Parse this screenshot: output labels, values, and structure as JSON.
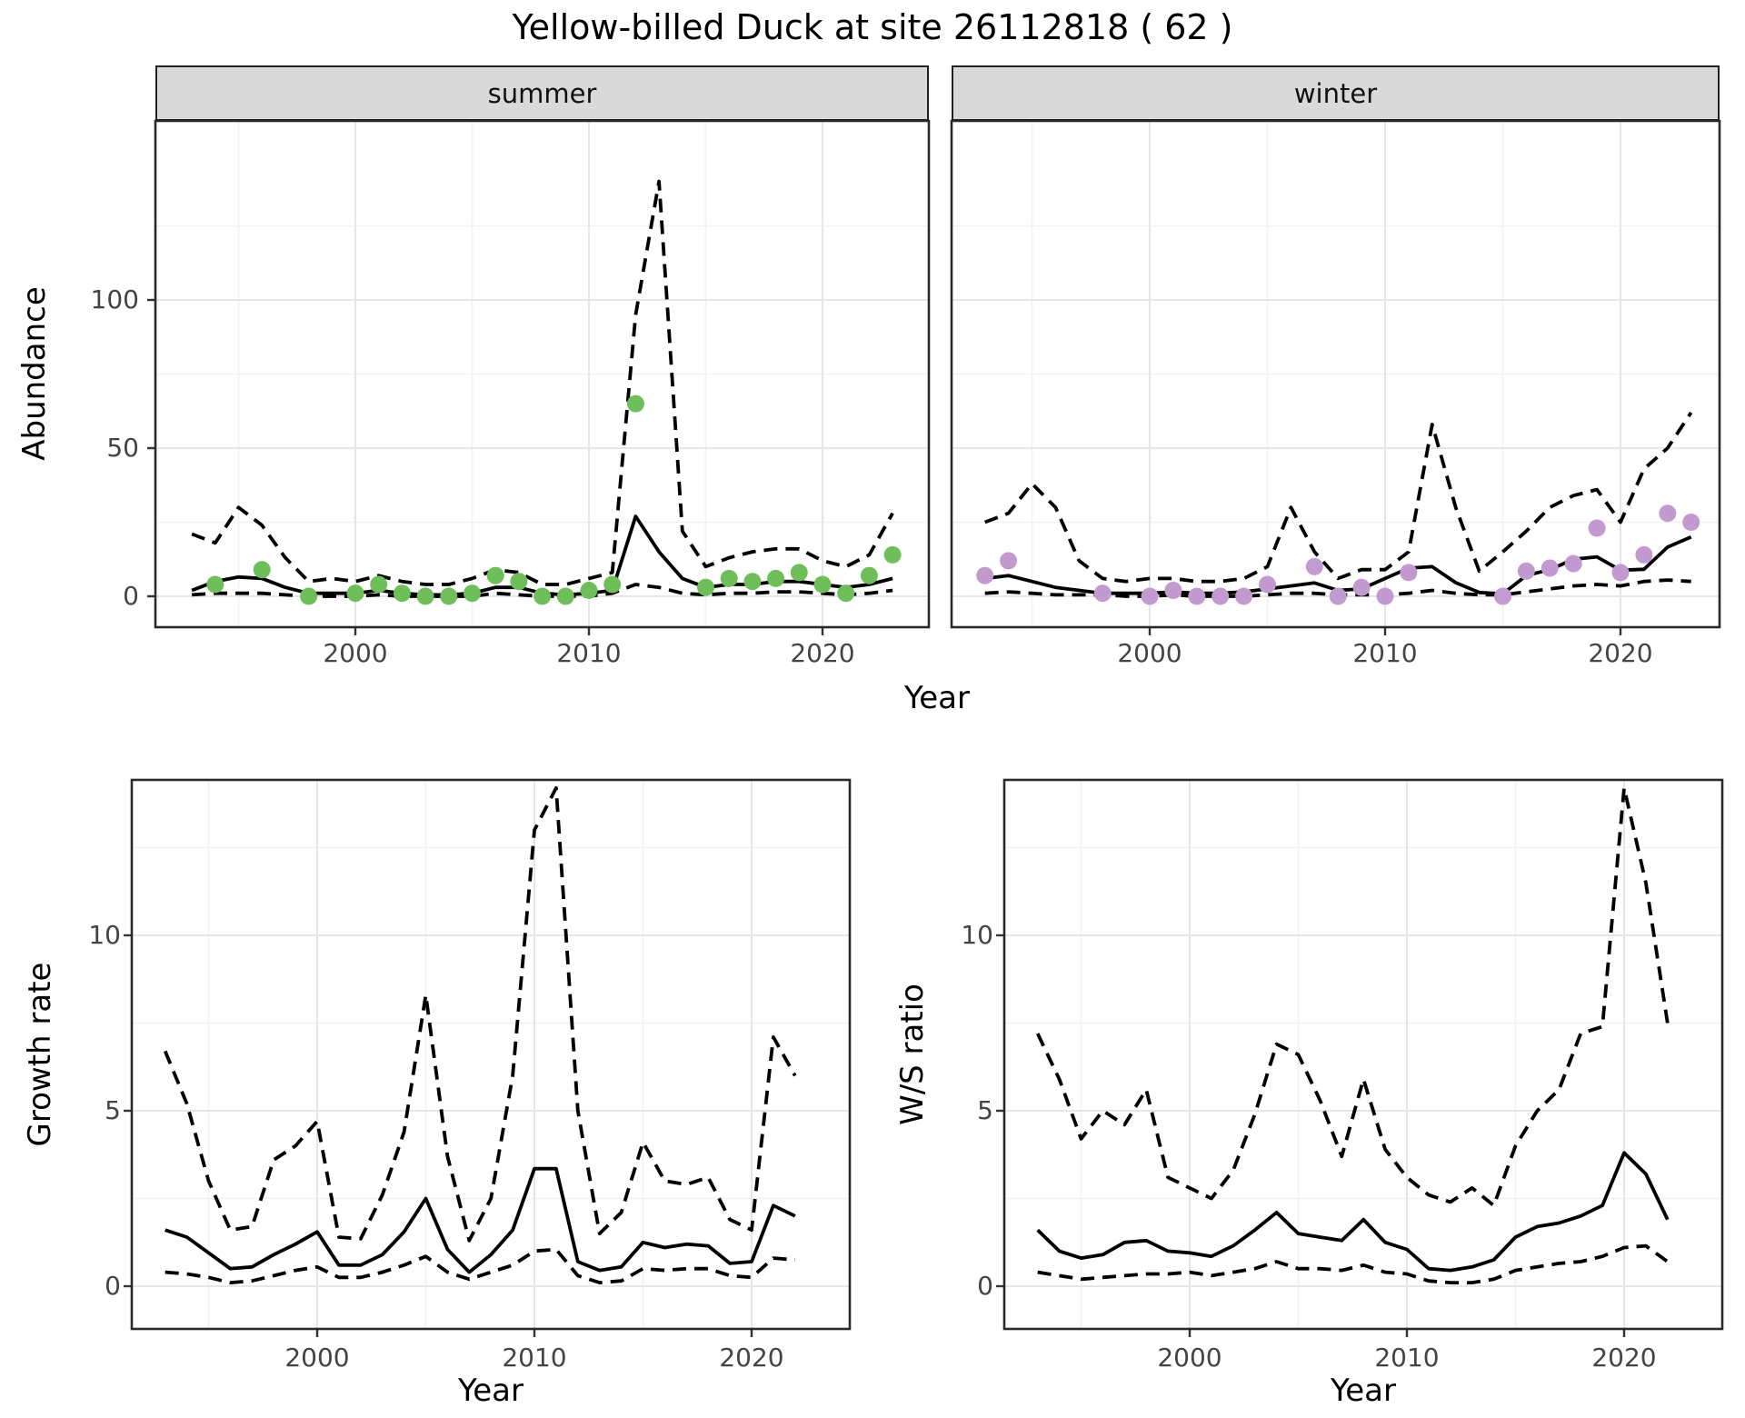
{
  "title": "Yellow-billed Duck at site 26112818 ( 62 )",
  "facets": {
    "summer_label": "summer",
    "winter_label": "winter"
  },
  "axes": {
    "abundance_label": "Abundance",
    "year_label": "Year",
    "growth_label": "Growth rate",
    "ws_label": "W/S ratio",
    "abundance_ticks": [
      "0",
      "50",
      "100"
    ],
    "rate_ticks": [
      "0",
      "5",
      "10"
    ],
    "year_ticks": [
      "2000",
      "2010",
      "2020"
    ]
  },
  "colors": {
    "summer_point": "#6ebe59",
    "winter_point": "#c39ad0",
    "line": "#000000",
    "strip_bg": "#d9d9d9",
    "panel_border": "#2a2a2a",
    "grid_major": "#e6e6e6",
    "grid_minor": "#f2f2f2",
    "axis_text": "#444444"
  },
  "chart_data": [
    {
      "type": "line",
      "title": "summer",
      "xlabel": "Year",
      "ylabel": "Abundance",
      "x_ticks": [
        2000,
        2010,
        2020
      ],
      "x_minor": [
        1995,
        2005,
        2015
      ],
      "y_ticks": [
        0,
        50,
        100
      ],
      "y_minor": [
        25,
        75,
        125
      ],
      "ylim": [
        -10,
        160
      ],
      "xlim": [
        1991.5,
        2024.5
      ],
      "legend": "none",
      "series": [
        {
          "name": "median",
          "style": "solid",
          "x": [
            1993,
            1994,
            1995,
            1996,
            1997,
            1998,
            1999,
            2000,
            2001,
            2002,
            2003,
            2004,
            2005,
            2006,
            2007,
            2008,
            2009,
            2010,
            2011,
            2012,
            2013,
            2014,
            2015,
            2016,
            2017,
            2018,
            2019,
            2020,
            2021,
            2022,
            2023
          ],
          "y": [
            2,
            5,
            6.5,
            6,
            3,
            1,
            1,
            1,
            2,
            1,
            0.5,
            0.5,
            1,
            3,
            3,
            1,
            0.5,
            1,
            2,
            27,
            15,
            6,
            3,
            4,
            4,
            5,
            5,
            4,
            3,
            4,
            6
          ]
        },
        {
          "name": "upper_ci",
          "style": "dashed",
          "x": [
            1993,
            1994,
            1995,
            1996,
            1997,
            1998,
            1999,
            2000,
            2001,
            2002,
            2003,
            2004,
            2005,
            2006,
            2007,
            2008,
            2009,
            2010,
            2011,
            2012,
            2013,
            2014,
            2015,
            2016,
            2017,
            2018,
            2019,
            2020,
            2021,
            2022,
            2023
          ],
          "y": [
            21,
            18,
            30,
            24,
            13,
            5,
            6,
            5,
            7,
            5,
            4,
            4,
            6,
            9,
            8,
            4,
            4,
            6,
            8,
            95,
            140,
            22,
            10,
            13,
            15,
            16,
            16,
            12,
            10,
            14,
            28
          ]
        },
        {
          "name": "lower_ci",
          "style": "dashed",
          "x": [
            1993,
            1994,
            1995,
            1996,
            1997,
            1998,
            1999,
            2000,
            2001,
            2002,
            2003,
            2004,
            2005,
            2006,
            2007,
            2008,
            2009,
            2010,
            2011,
            2012,
            2013,
            2014,
            2015,
            2016,
            2017,
            2018,
            2019,
            2020,
            2021,
            2022,
            2023
          ],
          "y": [
            0.5,
            1,
            1,
            1,
            0.5,
            0,
            0,
            0,
            0.5,
            0,
            0,
            0,
            0,
            1,
            0.5,
            0,
            0,
            0,
            1,
            4,
            3,
            1,
            0.5,
            1,
            1,
            1.5,
            1.5,
            1,
            0.5,
            1,
            2
          ]
        },
        {
          "name": "observed",
          "style": "points",
          "color": "#6ebe59",
          "x": [
            1994,
            1996,
            1998,
            2000,
            2001,
            2002,
            2003,
            2004,
            2005,
            2006,
            2007,
            2008,
            2009,
            2010,
            2011,
            2012,
            2015,
            2016,
            2017,
            2018,
            2019,
            2020,
            2021,
            2022,
            2023
          ],
          "y": [
            4,
            9,
            0,
            1,
            4,
            1,
            0,
            0,
            1,
            7,
            5,
            0,
            0,
            2,
            4,
            65,
            3,
            6,
            5,
            6,
            8,
            4,
            1,
            7,
            14
          ]
        }
      ]
    },
    {
      "type": "line",
      "title": "winter",
      "xlabel": "Year",
      "ylabel": "Abundance",
      "x_ticks": [
        2000,
        2010,
        2020
      ],
      "x_minor": [
        1995,
        2005,
        2015
      ],
      "y_ticks": [
        0,
        50,
        100
      ],
      "y_minor": [
        25,
        75,
        125
      ],
      "ylim": [
        -10,
        160
      ],
      "xlim": [
        1991.5,
        2024.5
      ],
      "legend": "none",
      "series": [
        {
          "name": "median",
          "style": "solid",
          "x": [
            1993,
            1994,
            1995,
            1996,
            1997,
            1998,
            1999,
            2000,
            2001,
            2002,
            2003,
            2004,
            2005,
            2006,
            2007,
            2008,
            2009,
            2010,
            2011,
            2012,
            2013,
            2014,
            2015,
            2016,
            2017,
            2018,
            2019,
            2020,
            2021,
            2022,
            2023
          ],
          "y": [
            6,
            7,
            5,
            3,
            2,
            1,
            1,
            1,
            1.5,
            1,
            1,
            1.5,
            2.5,
            3.5,
            4.5,
            2,
            2.5,
            6,
            9.5,
            10,
            4.6,
            1.3,
            0.8,
            7,
            9,
            12.5,
            13.3,
            8.8,
            9.1,
            16.6,
            20
          ]
        },
        {
          "name": "upper_ci",
          "style": "dashed",
          "x": [
            1993,
            1994,
            1995,
            1996,
            1997,
            1998,
            1999,
            2000,
            2001,
            2002,
            2003,
            2004,
            2005,
            2006,
            2007,
            2008,
            2009,
            2010,
            2011,
            2012,
            2013,
            2014,
            2015,
            2016,
            2017,
            2018,
            2019,
            2020,
            2021,
            2022,
            2023
          ],
          "y": [
            25,
            28,
            38,
            30,
            12,
            6,
            5,
            6,
            6,
            5,
            5,
            6,
            10,
            30,
            15,
            6,
            9,
            9,
            15,
            58,
            30,
            8.5,
            15,
            22,
            30,
            34,
            36,
            25,
            43,
            50,
            62
          ]
        },
        {
          "name": "lower_ci",
          "style": "dashed",
          "x": [
            1993,
            1994,
            1995,
            1996,
            1997,
            1998,
            1999,
            2000,
            2001,
            2002,
            2003,
            2004,
            2005,
            2006,
            2007,
            2008,
            2009,
            2010,
            2011,
            2012,
            2013,
            2014,
            2015,
            2016,
            2017,
            2018,
            2019,
            2020,
            2021,
            2022,
            2023
          ],
          "y": [
            1,
            1.5,
            1,
            0.5,
            0.5,
            0.5,
            0,
            0,
            0.5,
            0,
            0,
            0,
            0.5,
            1,
            1,
            0.5,
            0.5,
            0.5,
            1,
            2,
            1,
            0.5,
            0.5,
            1.5,
            2.5,
            3.5,
            4,
            3.5,
            5,
            5.5,
            5
          ]
        },
        {
          "name": "observed",
          "style": "points",
          "color": "#c39ad0",
          "x": [
            1993,
            1994,
            1998,
            2000,
            2001,
            2002,
            2003,
            2004,
            2005,
            2007,
            2008,
            2009,
            2010,
            2011,
            2015,
            2016,
            2017,
            2018,
            2019,
            2020,
            2021,
            2022,
            2023
          ],
          "y": [
            7,
            12,
            1,
            0,
            2,
            0,
            0,
            0,
            4,
            10,
            0,
            3,
            0,
            8,
            0,
            8.5,
            9.5,
            11,
            23,
            8,
            14,
            28,
            25
          ]
        }
      ]
    },
    {
      "type": "line",
      "title": "Growth rate",
      "xlabel": "Year",
      "ylabel": "Growth rate",
      "x_ticks": [
        2000,
        2010,
        2020
      ],
      "x_minor": [
        1995,
        2005,
        2015
      ],
      "y_ticks": [
        0,
        5,
        10
      ],
      "y_minor": [
        2.5,
        7.5,
        12.5
      ],
      "ylim": [
        -1,
        14.5
      ],
      "xlim": [
        1990.5,
        2024.5
      ],
      "legend": "none",
      "series": [
        {
          "name": "median",
          "style": "solid",
          "x": [
            1993,
            1994,
            1995,
            1996,
            1997,
            1998,
            1999,
            2000,
            2001,
            2002,
            2003,
            2004,
            2005,
            2006,
            2007,
            2008,
            2009,
            2010,
            2011,
            2012,
            2013,
            2014,
            2015,
            2016,
            2017,
            2018,
            2019,
            2020,
            2021,
            2022
          ],
          "y": [
            1.6,
            1.4,
            0.95,
            0.5,
            0.55,
            0.9,
            1.2,
            1.55,
            0.6,
            0.6,
            0.9,
            1.55,
            2.5,
            1.05,
            0.4,
            0.9,
            1.6,
            3.35,
            3.35,
            0.7,
            0.45,
            0.55,
            1.25,
            1.1,
            1.2,
            1.15,
            0.65,
            0.7,
            2.3,
            2.0
          ]
        },
        {
          "name": "upper_ci",
          "style": "dashed",
          "x": [
            1993,
            1994,
            1995,
            1996,
            1997,
            1998,
            1999,
            2000,
            2001,
            2002,
            2003,
            2004,
            2005,
            2006,
            2007,
            2008,
            2009,
            2010,
            2011,
            2012,
            2013,
            2014,
            2015,
            2016,
            2017,
            2018,
            2019,
            2020,
            2021,
            2022
          ],
          "y": [
            6.7,
            5.2,
            3.0,
            1.6,
            1.7,
            3.6,
            4.0,
            4.7,
            1.4,
            1.35,
            2.6,
            4.4,
            8.3,
            3.7,
            1.3,
            2.5,
            6.0,
            13.0,
            14.2,
            5.0,
            1.5,
            2.1,
            4.1,
            3.0,
            2.9,
            3.1,
            1.9,
            1.6,
            7.1,
            6.0
          ]
        },
        {
          "name": "lower_ci",
          "style": "dashed",
          "x": [
            1993,
            1994,
            1995,
            1996,
            1997,
            1998,
            1999,
            2000,
            2001,
            2002,
            2003,
            2004,
            2005,
            2006,
            2007,
            2008,
            2009,
            2010,
            2011,
            2012,
            2013,
            2014,
            2015,
            2016,
            2017,
            2018,
            2019,
            2020,
            2021,
            2022
          ],
          "y": [
            0.4,
            0.35,
            0.25,
            0.1,
            0.15,
            0.3,
            0.45,
            0.55,
            0.25,
            0.25,
            0.4,
            0.6,
            0.85,
            0.4,
            0.2,
            0.4,
            0.6,
            1.0,
            1.05,
            0.3,
            0.1,
            0.15,
            0.5,
            0.45,
            0.5,
            0.5,
            0.3,
            0.25,
            0.8,
            0.75
          ]
        }
      ]
    },
    {
      "type": "line",
      "title": "W/S ratio",
      "xlabel": "Year",
      "ylabel": "W/S ratio",
      "x_ticks": [
        2000,
        2010,
        2020
      ],
      "x_minor": [
        1995,
        2005,
        2015
      ],
      "y_ticks": [
        0,
        5,
        10
      ],
      "y_minor": [
        2.5,
        7.5,
        12.5
      ],
      "ylim": [
        -1,
        14.5
      ],
      "xlim": [
        1990.5,
        2024.5
      ],
      "legend": "none",
      "series": [
        {
          "name": "median",
          "style": "solid",
          "x": [
            1993,
            1994,
            1995,
            1996,
            1997,
            1998,
            1999,
            2000,
            2001,
            2002,
            2003,
            2004,
            2005,
            2006,
            2007,
            2008,
            2009,
            2010,
            2011,
            2012,
            2013,
            2014,
            2015,
            2016,
            2017,
            2018,
            2019,
            2020,
            2021,
            2022
          ],
          "y": [
            1.6,
            1.0,
            0.8,
            0.9,
            1.25,
            1.3,
            1.0,
            0.95,
            0.85,
            1.15,
            1.6,
            2.1,
            1.5,
            1.4,
            1.3,
            1.9,
            1.25,
            1.05,
            0.5,
            0.45,
            0.55,
            0.75,
            1.4,
            1.7,
            1.8,
            2.0,
            2.3,
            3.8,
            3.2,
            1.9
          ]
        },
        {
          "name": "upper_ci",
          "style": "dashed",
          "x": [
            1993,
            1994,
            1995,
            1996,
            1997,
            1998,
            1999,
            2000,
            2001,
            2002,
            2003,
            2004,
            2005,
            2006,
            2007,
            2008,
            2009,
            2010,
            2011,
            2012,
            2013,
            2014,
            2015,
            2016,
            2017,
            2018,
            2019,
            2020,
            2021,
            2022
          ],
          "y": [
            7.2,
            5.9,
            4.2,
            5.0,
            4.6,
            5.6,
            3.1,
            2.8,
            2.5,
            3.3,
            4.9,
            6.9,
            6.6,
            5.3,
            3.7,
            5.9,
            3.9,
            3.1,
            2.6,
            2.4,
            2.8,
            2.3,
            4.0,
            5.0,
            5.6,
            7.2,
            7.4,
            14.2,
            11.5,
            7.5
          ]
        },
        {
          "name": "lower_ci",
          "style": "dashed",
          "x": [
            1993,
            1994,
            1995,
            1996,
            1997,
            1998,
            1999,
            2000,
            2001,
            2002,
            2003,
            2004,
            2005,
            2006,
            2007,
            2008,
            2009,
            2010,
            2011,
            2012,
            2013,
            2014,
            2015,
            2016,
            2017,
            2018,
            2019,
            2020,
            2021,
            2022
          ],
          "y": [
            0.4,
            0.3,
            0.2,
            0.25,
            0.3,
            0.35,
            0.35,
            0.4,
            0.3,
            0.4,
            0.5,
            0.7,
            0.5,
            0.5,
            0.45,
            0.6,
            0.4,
            0.35,
            0.15,
            0.1,
            0.1,
            0.2,
            0.45,
            0.55,
            0.65,
            0.7,
            0.85,
            1.1,
            1.15,
            0.7
          ]
        }
      ]
    }
  ]
}
